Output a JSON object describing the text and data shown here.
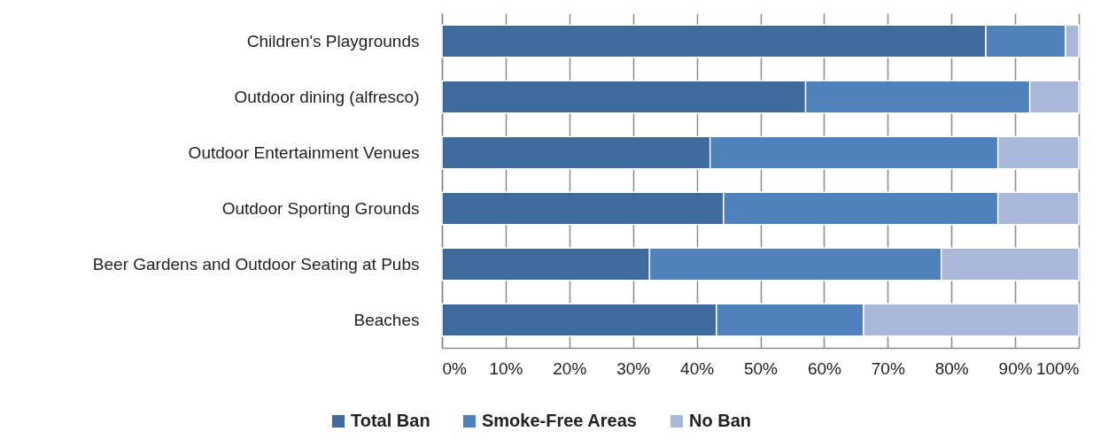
{
  "chart_data": {
    "type": "bar",
    "orientation": "horizontal",
    "stacked": true,
    "categories": [
      "Children's Playgrounds",
      "Outdoor dining (alfresco)",
      "Outdoor Entertainment Venues",
      "Outdoor Sporting Grounds",
      "Beer Gardens and Outdoor Seating at Pubs",
      "Beaches"
    ],
    "series": [
      {
        "name": "Total Ban",
        "color": "#3f6a9c",
        "values": [
          85.4,
          57.1,
          42.1,
          44.2,
          32.6,
          43.1
        ]
      },
      {
        "name": "Smoke-Free Areas",
        "color": "#4f81bd",
        "values": [
          12.5,
          35.2,
          45.2,
          43.1,
          45.8,
          23.1
        ]
      },
      {
        "name": "No Ban",
        "color": "#a9b8d8",
        "values": [
          2.1,
          7.7,
          12.7,
          12.7,
          21.6,
          33.8
        ]
      }
    ],
    "xlim": [
      0,
      100
    ],
    "xticks": [
      {
        "value": 0,
        "label": "0%"
      },
      {
        "value": 10,
        "label": "10%"
      },
      {
        "value": 20,
        "label": "20%"
      },
      {
        "value": 30,
        "label": "30%"
      },
      {
        "value": 40,
        "label": "40%"
      },
      {
        "value": 50,
        "label": "50%"
      },
      {
        "value": 60,
        "label": "60%"
      },
      {
        "value": 70,
        "label": "70%"
      },
      {
        "value": 80,
        "label": "80%"
      },
      {
        "value": 90,
        "label": "90%"
      },
      {
        "value": 100,
        "label": "100%"
      }
    ],
    "grid": "x",
    "legend": "bottom"
  }
}
